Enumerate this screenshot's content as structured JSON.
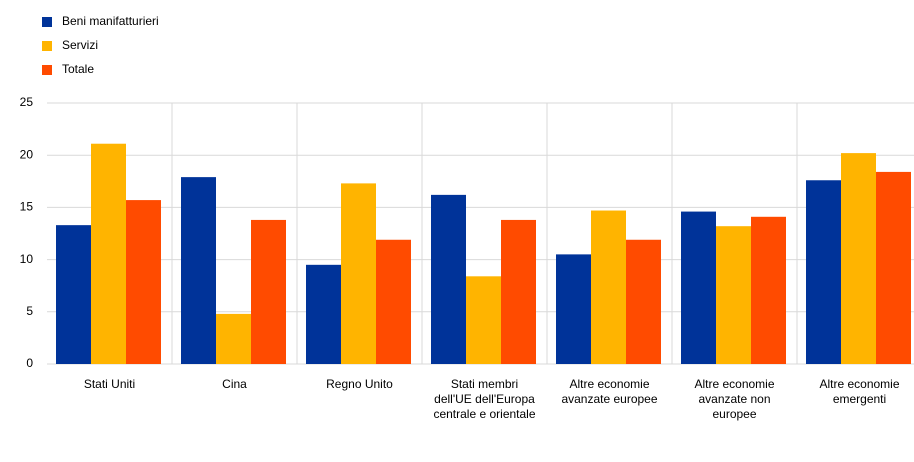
{
  "chart_data": {
    "type": "bar",
    "categories": [
      "Stati Uniti",
      "Cina",
      "Regno Unito",
      "Stati membri dell'UE dell'Europa centrale e orientale",
      "Altre economie avanzate europee",
      "Altre economie avanzate non europee",
      "Altre economie emergenti"
    ],
    "series": [
      {
        "name": "Beni manifatturieri",
        "color": "#003399",
        "values": [
          13.3,
          17.9,
          9.5,
          16.2,
          10.5,
          14.6,
          17.6
        ]
      },
      {
        "name": "Servizi",
        "color": "#ffb400",
        "values": [
          21.1,
          4.8,
          17.3,
          8.4,
          14.7,
          13.2,
          20.2
        ]
      },
      {
        "name": "Totale",
        "color": "#ff4b00",
        "values": [
          15.7,
          13.8,
          11.9,
          13.8,
          11.9,
          14.1,
          18.4
        ]
      }
    ],
    "ylim": [
      0,
      25
    ],
    "yticks": [
      0,
      5,
      10,
      15,
      20,
      25
    ],
    "grid": true
  }
}
